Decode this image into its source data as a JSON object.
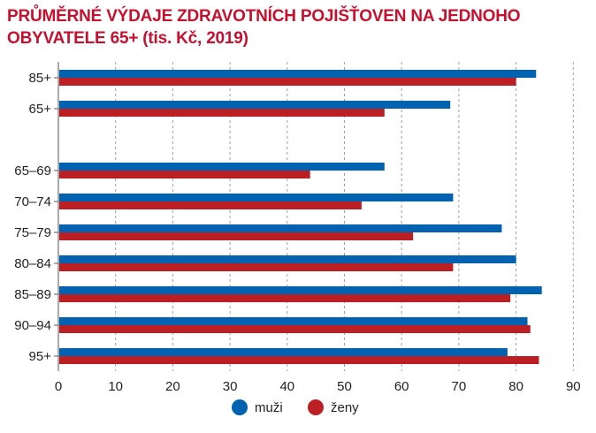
{
  "title_lines": [
    "PRŮMĚRNÉ VÝDAJE ZDRAVOTNÍCH POJIŠŤOVEN NA JEDNOHO",
    "OBYVATELE 65+ (tis. Kč, 2019)"
  ],
  "colors": {
    "title": "#c8102e",
    "muzi": "#0062b1",
    "zeny": "#bb1e23",
    "grid": "#a0a0a0",
    "axis": "#555555"
  },
  "legend": {
    "muzi": "muži",
    "zeny": "ženy"
  },
  "chart_data": {
    "type": "bar",
    "orientation": "horizontal",
    "title": "PRŮMĚRNÉ VÝDAJE ZDRAVOTNÍCH POJIŠŤOVEN NA JEDNOHO OBYVATELE 65+ (tis. Kč, 2019)",
    "categories": [
      "85+",
      "65+",
      "",
      "65–69",
      "70–74",
      "75–79",
      "80–84",
      "85–89",
      "90–94",
      "95+"
    ],
    "series": [
      {
        "name": "muži",
        "color": "#0062b1",
        "values": [
          83.5,
          68.5,
          null,
          57,
          69,
          77.5,
          80,
          84.5,
          82,
          78.5
        ]
      },
      {
        "name": "ženy",
        "color": "#bb1e23",
        "values": [
          80,
          57,
          null,
          44,
          53,
          62,
          69,
          79,
          82.5,
          84
        ]
      }
    ],
    "xlim": [
      0,
      90
    ],
    "xticks": [
      0,
      10,
      20,
      30,
      40,
      50,
      60,
      70,
      80,
      90
    ],
    "grid": true,
    "legend_position": "bottom"
  }
}
